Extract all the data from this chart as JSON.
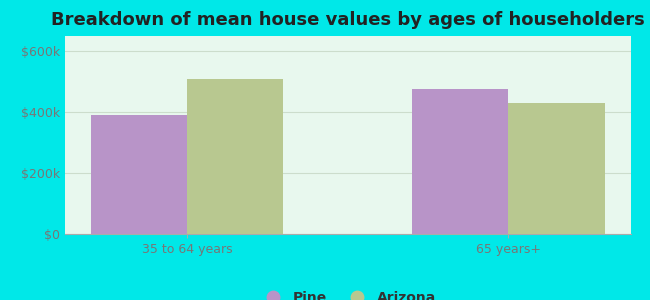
{
  "title": "Breakdown of mean house values by ages of householders",
  "categories": [
    "35 to 64 years",
    "65 years+"
  ],
  "pine_values": [
    390000,
    475000
  ],
  "arizona_values": [
    510000,
    430000
  ],
  "pine_color": "#b894c8",
  "arizona_color": "#b8c890",
  "background_color": "#00e8e8",
  "plot_bg_color": "#e8f8ee",
  "ylim": [
    0,
    650000
  ],
  "yticks": [
    0,
    200000,
    400000,
    600000
  ],
  "ytick_labels": [
    "$0",
    "$200k",
    "$400k",
    "$600k"
  ],
  "legend_labels": [
    "Pine",
    "Arizona"
  ],
  "bar_width": 0.3,
  "title_fontsize": 13,
  "tick_fontsize": 9,
  "legend_fontsize": 10,
  "tick_color": "#777777"
}
